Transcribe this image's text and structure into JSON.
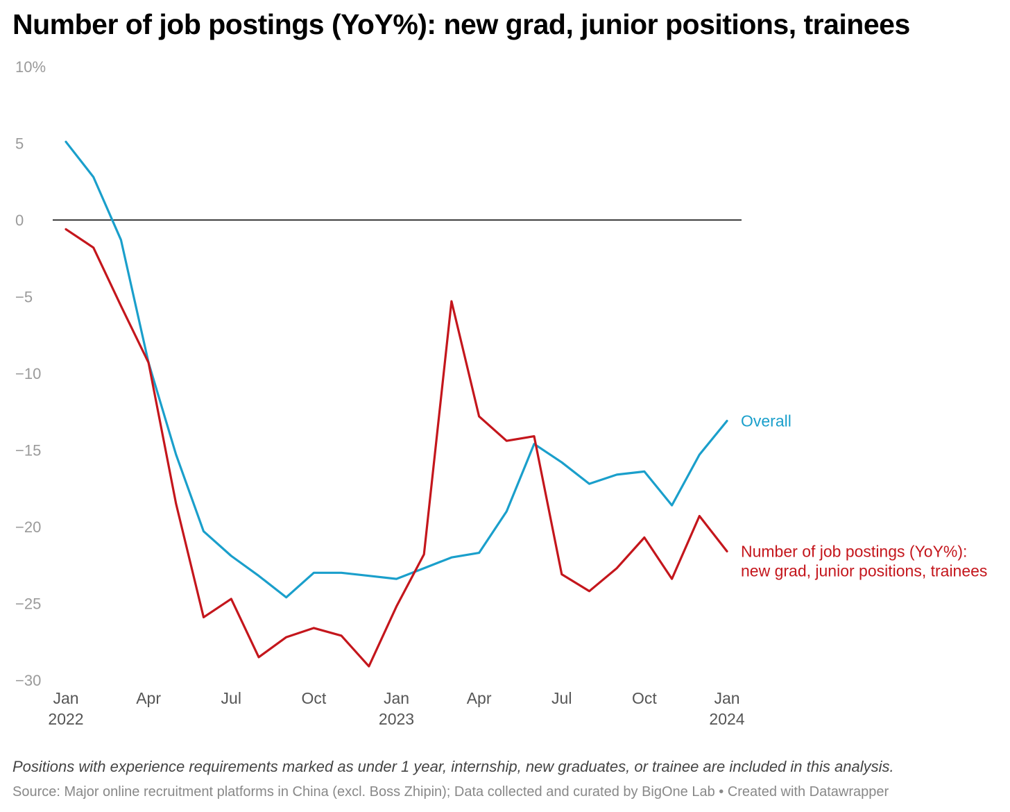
{
  "chart_data": {
    "type": "line",
    "title": "Number of job postings (YoY%): new grad, junior positions, trainees",
    "ylim": [
      -30,
      10
    ],
    "yticks": [
      {
        "value": 10,
        "label": "10%"
      },
      {
        "value": 5,
        "label": "5"
      },
      {
        "value": 0,
        "label": "0"
      },
      {
        "value": -5,
        "label": "−5"
      },
      {
        "value": -10,
        "label": "−10"
      },
      {
        "value": -15,
        "label": "−15"
      },
      {
        "value": -20,
        "label": "−20"
      },
      {
        "value": -25,
        "label": "−25"
      },
      {
        "value": -30,
        "label": "−30"
      }
    ],
    "xticks": [
      {
        "date": "2022-01",
        "label": "Jan",
        "year": "2022"
      },
      {
        "date": "2022-04",
        "label": "Apr",
        "year": ""
      },
      {
        "date": "2022-07",
        "label": "Jul",
        "year": ""
      },
      {
        "date": "2022-10",
        "label": "Oct",
        "year": ""
      },
      {
        "date": "2023-01",
        "label": "Jan",
        "year": "2023"
      },
      {
        "date": "2023-04",
        "label": "Apr",
        "year": ""
      },
      {
        "date": "2023-07",
        "label": "Jul",
        "year": ""
      },
      {
        "date": "2023-10",
        "label": "Oct",
        "year": ""
      },
      {
        "date": "2024-01",
        "label": "Jan",
        "year": "2024"
      }
    ],
    "x": [
      "2022-01",
      "2022-02",
      "2022-03",
      "2022-04",
      "2022-05",
      "2022-06",
      "2022-07",
      "2022-08",
      "2022-09",
      "2022-10",
      "2022-11",
      "2022-12",
      "2023-01",
      "2023-02",
      "2023-03",
      "2023-04",
      "2023-05",
      "2023-06",
      "2023-07",
      "2023-08",
      "2023-09",
      "2023-10",
      "2023-11",
      "2023-12",
      "2024-01"
    ],
    "series": [
      {
        "name": "Overall",
        "color": "#1a9fcb",
        "values": [
          5.1,
          2.8,
          -1.3,
          -9.3,
          -15.3,
          -20.3,
          -21.9,
          -23.2,
          -24.6,
          -23.0,
          -23.0,
          -23.2,
          -23.4,
          -22.7,
          -22.0,
          -21.7,
          -19.0,
          -14.6,
          -15.8,
          -17.2,
          -16.6,
          -16.4,
          -18.6,
          -15.3,
          -13.1
        ]
      },
      {
        "name": "Number of job postings (YoY%): new grad, junior positions, trainees",
        "label_lines": [
          "Number of job postings (YoY%):",
          "new grad, junior positions, trainees"
        ],
        "color": "#c4161c",
        "values": [
          -0.6,
          -1.8,
          -5.6,
          -9.3,
          -18.5,
          -25.9,
          -24.7,
          -28.5,
          -27.2,
          -26.6,
          -27.1,
          -29.1,
          -25.2,
          -21.8,
          -5.3,
          -12.8,
          -14.4,
          -14.1,
          -23.1,
          -24.2,
          -22.7,
          -20.7,
          -23.4,
          -19.3,
          -21.6
        ]
      }
    ],
    "zero_line": true,
    "grid": false,
    "legend": "inline labels at line ends"
  },
  "footer": {
    "note": "Positions with experience requirements marked as under 1 year, internship, new graduates, or trainee are included in this analysis.",
    "source": "Source: Major online recruitment platforms in China (excl. Boss Zhipin); Data collected and curated by BigOne Lab • Created with Datawrapper"
  }
}
